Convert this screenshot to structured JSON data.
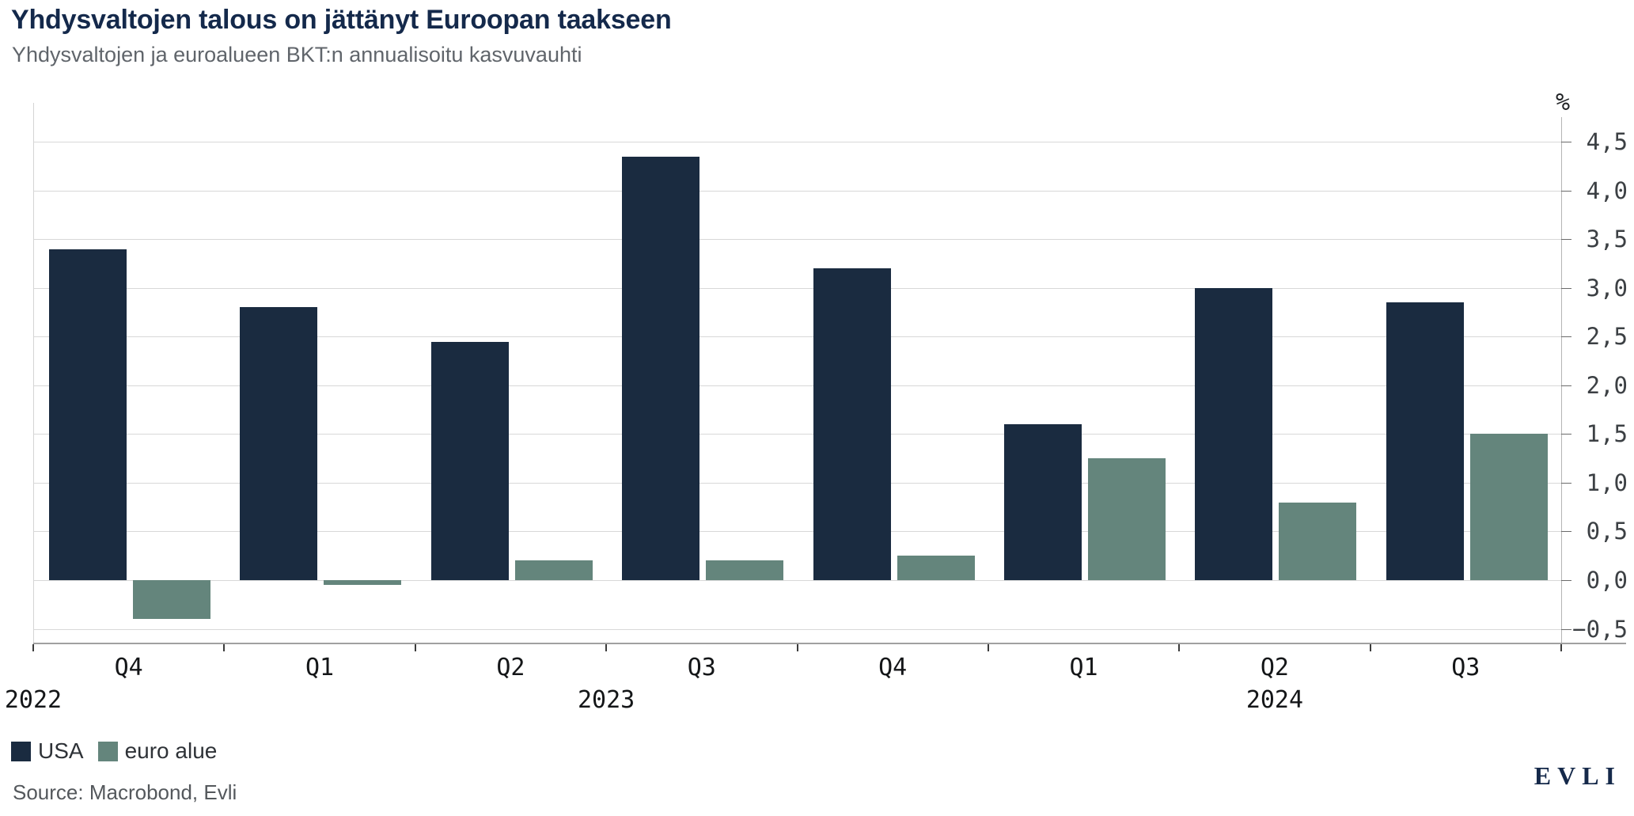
{
  "header": {
    "title": "Yhdysvaltojen talous on jättänyt Euroopan taakseen",
    "subtitle": "Yhdysvaltojen ja euroalueen BKT:n annualisoitu kasvuvauhti"
  },
  "chart_data": {
    "type": "bar",
    "unit_label": "%",
    "categories": [
      "Q4",
      "Q1",
      "Q2",
      "Q3",
      "Q4",
      "Q1",
      "Q2",
      "Q3"
    ],
    "years": [
      {
        "label": "2022",
        "quarters": [
          0
        ]
      },
      {
        "label": "2023",
        "quarters": [
          1,
          2,
          3,
          4
        ]
      },
      {
        "label": "2024",
        "quarters": [
          5,
          6,
          7
        ]
      }
    ],
    "series": [
      {
        "name": "USA",
        "color": "#1a2b40",
        "values": [
          3.4,
          2.8,
          2.45,
          4.35,
          3.2,
          1.6,
          3.0,
          2.85
        ]
      },
      {
        "name": "euro alue",
        "color": "#64857c",
        "values": [
          -0.4,
          -0.05,
          0.2,
          0.2,
          0.25,
          1.25,
          0.8,
          1.5
        ]
      }
    ],
    "ylim": [
      -0.65,
      4.9
    ],
    "yticks": [
      {
        "v": 4.5,
        "label": "4,5"
      },
      {
        "v": 4.0,
        "label": "4,0"
      },
      {
        "v": 3.5,
        "label": "3,5"
      },
      {
        "v": 3.0,
        "label": "3,0"
      },
      {
        "v": 2.5,
        "label": "2,5"
      },
      {
        "v": 2.0,
        "label": "2,0"
      },
      {
        "v": 1.5,
        "label": "1,5"
      },
      {
        "v": 1.0,
        "label": "1,0"
      },
      {
        "v": 0.5,
        "label": "0,5"
      },
      {
        "v": 0.0,
        "label": "0,0"
      },
      {
        "v": -0.5,
        "label": "−0,5"
      }
    ],
    "grid": true,
    "legend_position": "bottom-left"
  },
  "footer": {
    "source": "Source: Macrobond, Evli",
    "logo": "EVLI"
  }
}
